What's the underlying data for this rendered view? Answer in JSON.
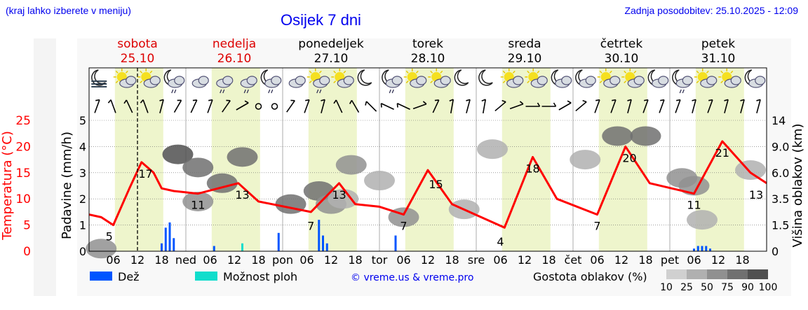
{
  "header": {
    "subtitle": "(kraj lahko izberete v meniju)",
    "title": "Osijek 7 dni",
    "updated": "Zadnja posodobitev: 25.10.2025 - 12:09"
  },
  "days": [
    {
      "name": "sobota",
      "date": "25.10",
      "weekend": true,
      "abbr": ""
    },
    {
      "name": "nedelja",
      "date": "26.10",
      "weekend": true,
      "abbr": "ned"
    },
    {
      "name": "ponedeljek",
      "date": "27.10",
      "weekend": false,
      "abbr": "pon"
    },
    {
      "name": "torek",
      "date": "28.10",
      "weekend": false,
      "abbr": "tor"
    },
    {
      "name": "sreda",
      "date": "29.10",
      "weekend": false,
      "abbr": "sre"
    },
    {
      "name": "četrtek",
      "date": "30.10",
      "weekend": false,
      "abbr": "čet"
    },
    {
      "name": "petek",
      "date": "31.10",
      "weekend": false,
      "abbr": "pet"
    }
  ],
  "icons": [
    "fog-moon",
    "sun-cloud",
    "sun-cloud",
    "moon-cloud-rain",
    "cloud",
    "cloud-rain",
    "cloud-rain",
    "moon-cloud-rain",
    "cloud",
    "sun-cloud-rain",
    "sun-cloud",
    "moon",
    "moon-cloud-rain",
    "sun-cloud",
    "sun-cloud",
    "moon",
    "moon",
    "sun-cloud",
    "sun-cloud",
    "moon-cloud",
    "moon-cloud",
    "sun-cloud",
    "sun-cloud",
    "moon-cloud",
    "moon-cloud-rain",
    "sun-cloud",
    "sun-cloud",
    "moon-cloud"
  ],
  "colors": {
    "temp": "#ff0000",
    "rain": "#0055ff",
    "showers": "#11ddcc",
    "day": "#eef5cc",
    "weekend": "#dd0000"
  },
  "chart_data": {
    "type": "line",
    "title": "Osijek 7 dni",
    "x_unit": "hours since 25.10 00:00",
    "now_hour": 12,
    "xticks": [
      "06",
      "12",
      "18"
    ],
    "y_left_temp": {
      "label": "Temperatura (°C)",
      "ticks": [
        "0",
        "5",
        "10",
        "15",
        "20",
        "25"
      ],
      "range": [
        0,
        25
      ]
    },
    "y_left_precip": {
      "label": "Padavine (mm/h)",
      "ticks": [
        "0",
        "1",
        "2",
        "3",
        "4",
        "5"
      ],
      "range": [
        0,
        5
      ]
    },
    "y_right_cloud": {
      "label": "Višina oblakov (km)",
      "ticks": [
        "0",
        "1.5",
        "3.5",
        "6.0",
        "9.0",
        "14"
      ]
    },
    "temperature": [
      [
        0,
        7
      ],
      [
        3,
        6.5
      ],
      [
        6,
        5
      ],
      [
        10,
        12
      ],
      [
        13,
        17
      ],
      [
        16,
        15
      ],
      [
        18,
        12
      ],
      [
        21,
        11.5
      ],
      [
        27,
        11
      ],
      [
        32,
        12
      ],
      [
        37,
        13
      ],
      [
        42,
        9.5
      ],
      [
        55,
        7.5
      ],
      [
        62,
        13
      ],
      [
        66,
        9
      ],
      [
        72,
        8.5
      ],
      [
        78,
        7
      ],
      [
        84,
        15.5
      ],
      [
        90,
        9
      ],
      [
        103,
        4.5
      ],
      [
        110,
        18
      ],
      [
        116,
        10
      ],
      [
        126,
        7
      ],
      [
        133,
        20
      ],
      [
        139,
        13
      ],
      [
        150,
        11
      ],
      [
        157,
        21
      ],
      [
        164,
        15
      ],
      [
        168,
        13
      ]
    ],
    "temp_labels": [
      [
        5,
        "5"
      ],
      [
        14,
        "17"
      ],
      [
        27,
        "11"
      ],
      [
        38,
        "13"
      ],
      [
        55,
        "7"
      ],
      [
        62,
        "13"
      ],
      [
        78,
        "7"
      ],
      [
        86,
        "15"
      ],
      [
        102,
        "4"
      ],
      [
        110,
        "18"
      ],
      [
        126,
        "7"
      ],
      [
        134,
        "20"
      ],
      [
        150,
        "11"
      ],
      [
        157,
        "21"
      ],
      [
        167,
        "13"
      ]
    ],
    "rain": [
      [
        18,
        0.3
      ],
      [
        19,
        0.9
      ],
      [
        20,
        1.1
      ],
      [
        21,
        0.5
      ],
      [
        31,
        0.2
      ],
      [
        47,
        0.7
      ],
      [
        57,
        1.2
      ],
      [
        58,
        0.6
      ],
      [
        59,
        0.3
      ],
      [
        76,
        0.6
      ],
      [
        150,
        0.1
      ],
      [
        151,
        0.2
      ],
      [
        152,
        0.2
      ],
      [
        153,
        0.2
      ],
      [
        154,
        0.1
      ]
    ],
    "showers": [
      [
        38,
        0.3
      ]
    ],
    "clouds": [
      [
        22,
        3.7,
        90
      ],
      [
        27,
        3.2,
        75
      ],
      [
        27,
        1.9,
        50
      ],
      [
        33,
        2.6,
        75
      ],
      [
        38,
        3.6,
        75
      ],
      [
        50,
        1.8,
        75
      ],
      [
        57,
        2.3,
        75
      ],
      [
        60,
        1.8,
        50
      ],
      [
        63,
        2.0,
        25
      ],
      [
        72,
        2.7,
        25
      ],
      [
        65,
        3.3,
        50
      ],
      [
        78,
        1.3,
        50
      ],
      [
        93,
        1.6,
        25
      ],
      [
        100,
        3.9,
        25
      ],
      [
        123,
        3.5,
        25
      ],
      [
        131,
        4.4,
        75
      ],
      [
        138,
        4.4,
        75
      ],
      [
        150,
        2.5,
        50
      ],
      [
        152,
        1.2,
        25
      ],
      [
        164,
        3.1,
        25
      ],
      [
        147,
        2.8,
        50
      ],
      [
        3,
        0.1,
        50
      ]
    ],
    "wind": [
      200,
      160,
      155,
      160,
      195,
      210,
      205,
      200,
      215,
      240,
      0,
      0,
      215,
      200,
      195,
      155,
      150,
      135,
      115,
      115,
      250,
      205,
      190,
      195,
      190,
      230,
      250,
      270,
      270,
      240,
      230,
      200,
      200,
      195,
      200,
      200,
      200,
      195,
      200,
      195,
      195,
      195
    ]
  },
  "legend": {
    "rain": "Dež",
    "showers": "Možnost ploh",
    "credit": "© vreme.us & vreme.pro",
    "density": "Gostota oblakov (%)",
    "density_levels": [
      "10",
      "25",
      "50",
      "75",
      "90",
      "100"
    ]
  }
}
